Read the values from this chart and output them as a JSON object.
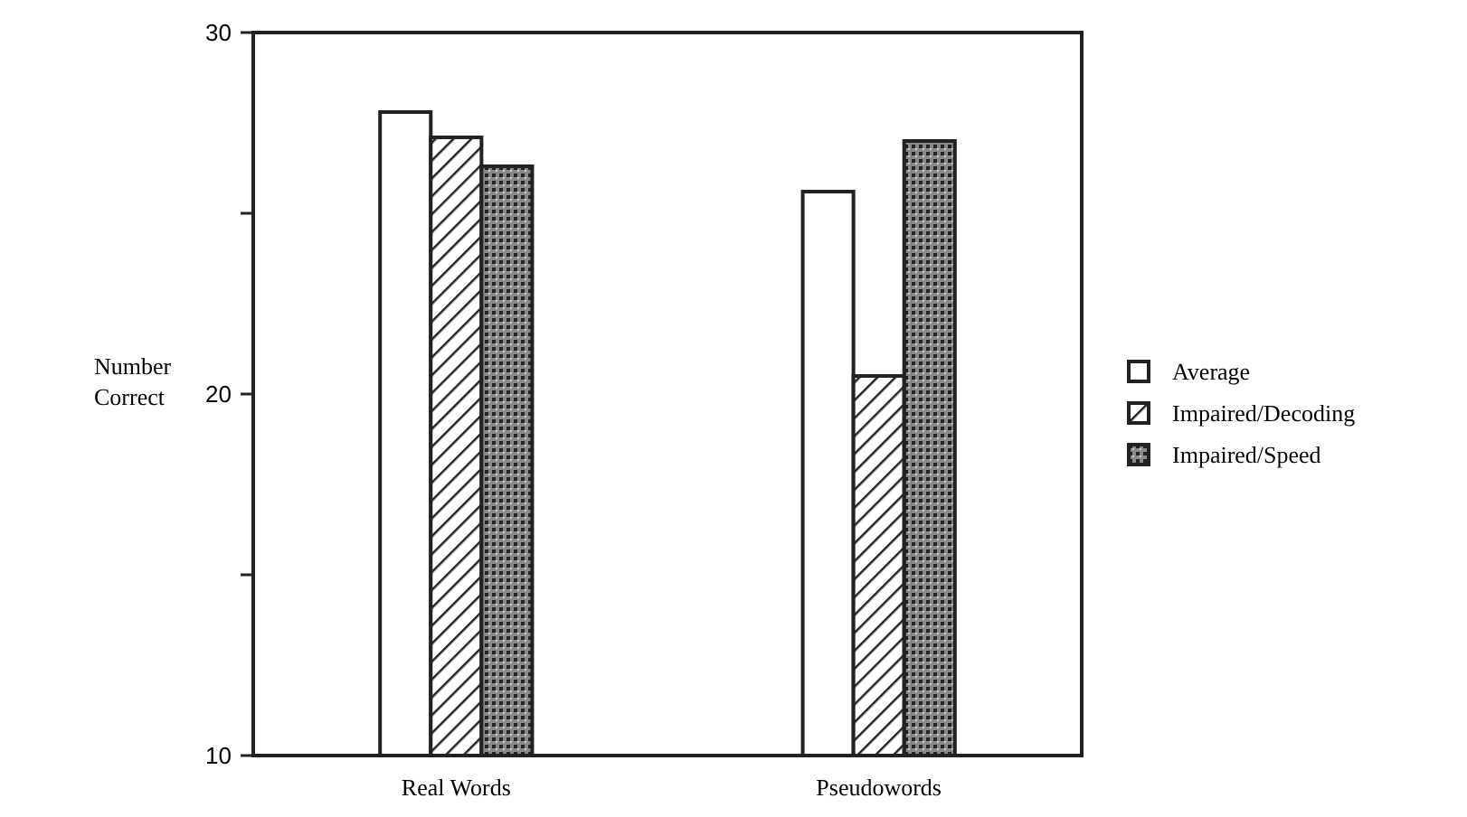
{
  "chart_data": {
    "type": "bar",
    "ylabel": "Number Correct",
    "categories": [
      "Real Words",
      "Pseudowords"
    ],
    "series": [
      {
        "name": "Average",
        "color": "#ffffff",
        "values": [
          27.8,
          25.6
        ]
      },
      {
        "name": "Impaired/Decoding",
        "color": "#222222",
        "values": [
          27.1,
          20.5
        ]
      },
      {
        "name": "Impaired/Speed",
        "color": "#222222",
        "values": [
          26.3,
          27.0
        ]
      }
    ],
    "ylim": [
      10,
      30
    ],
    "yticks": [
      10,
      {
        "value": 15,
        "label": null
      },
      20,
      {
        "value": 25,
        "label": null
      },
      30
    ],
    "grid": false,
    "legend": "right"
  }
}
